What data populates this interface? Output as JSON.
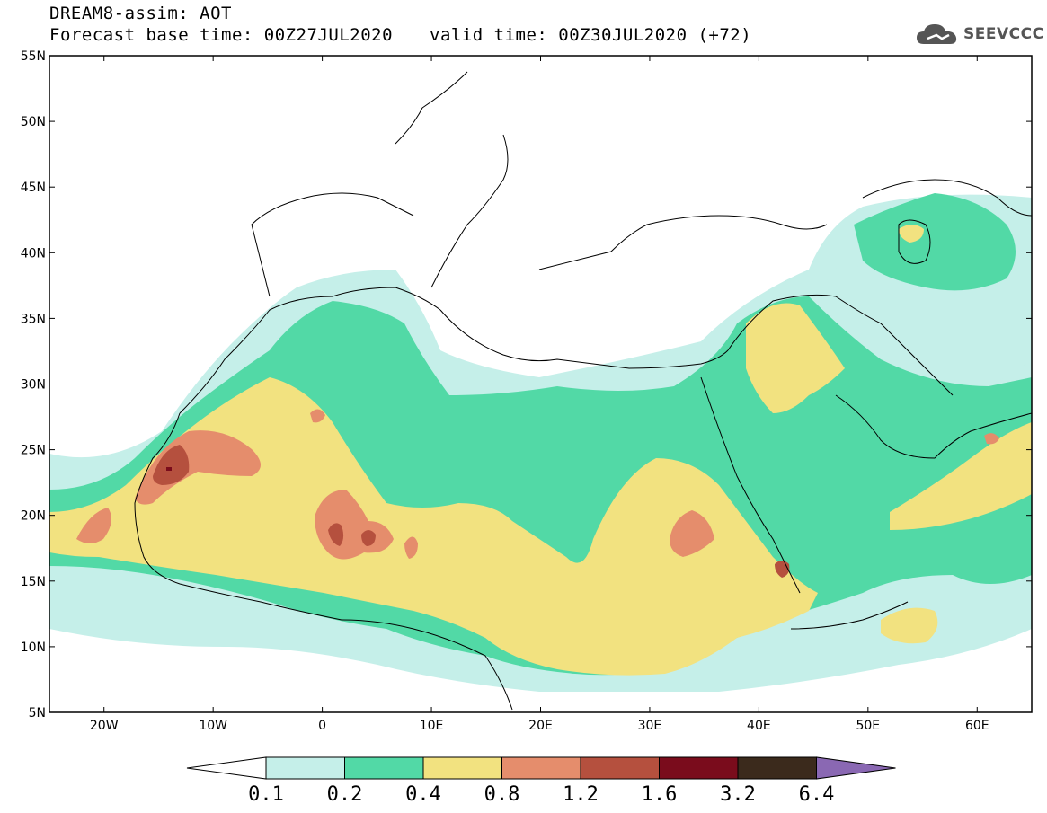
{
  "header": {
    "title": "DREAM8-assim: AOT",
    "forecast": "Forecast base time: 00Z27JUL2020",
    "valid": "valid time: 00Z30JUL2020 (+72)"
  },
  "logo": {
    "text": "SEEVCCC",
    "icon": "cloud-icon"
  },
  "map": {
    "lat_labels": [
      "55N",
      "50N",
      "45N",
      "40N",
      "35N",
      "30N",
      "25N",
      "20N",
      "15N",
      "10N",
      "5N"
    ],
    "lon_labels": [
      "20W",
      "10W",
      "0",
      "10E",
      "20E",
      "30E",
      "40E",
      "50E",
      "60E"
    ],
    "lat_range": [
      5,
      55
    ],
    "lon_range": [
      -25,
      65
    ]
  },
  "colorbar": {
    "labels": [
      "0.1",
      "0.2",
      "0.4",
      "0.8",
      "1.2",
      "1.6",
      "3.2",
      "6.4"
    ],
    "colors": [
      "#c5efe9",
      "#52d9a6",
      "#f2e280",
      "#e58d6c",
      "#b5503e",
      "#7a0c1c",
      "#3b2a1c"
    ],
    "under_color": "#ffffff",
    "over_color": "#8a68b3"
  }
}
